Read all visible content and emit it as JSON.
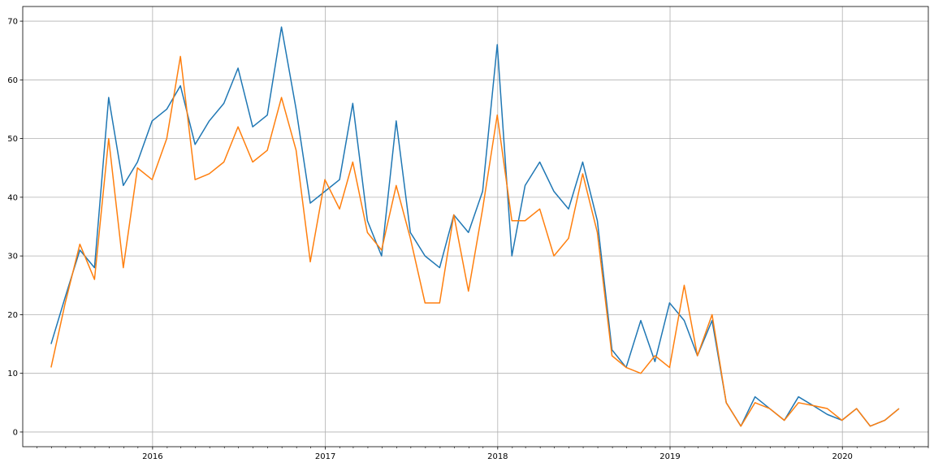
{
  "chart_data": {
    "type": "line",
    "title": "",
    "xlabel": "",
    "ylabel": "",
    "grid": true,
    "legend": "none",
    "xlim": [
      "2015-04-01",
      "2020-07-01"
    ],
    "ylim": [
      -2.5,
      72.5
    ],
    "x_ticks": [
      {
        "date": "2016-01-01",
        "label": "2016"
      },
      {
        "date": "2017-01-01",
        "label": "2017"
      },
      {
        "date": "2018-01-01",
        "label": "2018"
      },
      {
        "date": "2019-01-01",
        "label": "2019"
      },
      {
        "date": "2020-01-01",
        "label": "2020"
      }
    ],
    "y_ticks": [
      0,
      10,
      20,
      30,
      40,
      50,
      60,
      70
    ],
    "x": [
      "2015-05-31",
      "2015-06-30",
      "2015-07-31",
      "2015-08-31",
      "2015-09-30",
      "2015-10-31",
      "2015-11-30",
      "2015-12-31",
      "2016-01-31",
      "2016-02-29",
      "2016-03-31",
      "2016-04-30",
      "2016-05-31",
      "2016-06-30",
      "2016-07-31",
      "2016-08-31",
      "2016-09-30",
      "2016-10-31",
      "2016-11-30",
      "2016-12-31",
      "2017-01-31",
      "2017-02-28",
      "2017-03-31",
      "2017-04-30",
      "2017-05-31",
      "2017-06-30",
      "2017-07-31",
      "2017-08-31",
      "2017-09-30",
      "2017-10-31",
      "2017-11-30",
      "2017-12-31",
      "2018-01-31",
      "2018-02-28",
      "2018-03-31",
      "2018-04-30",
      "2018-05-31",
      "2018-06-30",
      "2018-07-31",
      "2018-08-31",
      "2018-09-30",
      "2018-10-31",
      "2018-11-30",
      "2018-12-31",
      "2019-01-31",
      "2019-02-28",
      "2019-03-31",
      "2019-04-30",
      "2019-05-31",
      "2019-06-30",
      "2019-07-31",
      "2019-08-31",
      "2019-09-30",
      "2019-10-31",
      "2019-11-30",
      "2019-12-31",
      "2020-01-31",
      "2020-02-29",
      "2020-03-31",
      "2020-04-30"
    ],
    "series": [
      {
        "color": "#1f77b4",
        "values": [
          15,
          23,
          31,
          28,
          57,
          42,
          46,
          53,
          55,
          59,
          49,
          53,
          56,
          62,
          52,
          54,
          69,
          55,
          39,
          41,
          43,
          56,
          36,
          30,
          53,
          34,
          30,
          28,
          37,
          34,
          41,
          66,
          30,
          42,
          46,
          41,
          38,
          46,
          36,
          14,
          11,
          19,
          12,
          22,
          19,
          13,
          19,
          5,
          1,
          6,
          4,
          2,
          6,
          4.5,
          3,
          2,
          4,
          1,
          2,
          4
        ]
      },
      {
        "color": "#ff7f0e",
        "values": [
          11,
          22,
          32,
          26,
          50,
          28,
          45,
          43,
          50,
          64,
          43,
          44,
          46,
          52,
          46,
          48,
          57,
          48,
          29,
          43,
          38,
          46,
          34,
          31,
          42,
          33,
          22,
          22,
          37,
          24,
          38,
          54,
          36,
          36,
          38,
          30,
          33,
          44,
          34,
          13,
          11,
          10,
          13,
          11,
          25,
          13,
          20,
          5,
          1,
          5,
          4,
          2,
          5,
          4.5,
          4,
          2,
          4,
          1,
          2,
          4
        ]
      }
    ]
  }
}
